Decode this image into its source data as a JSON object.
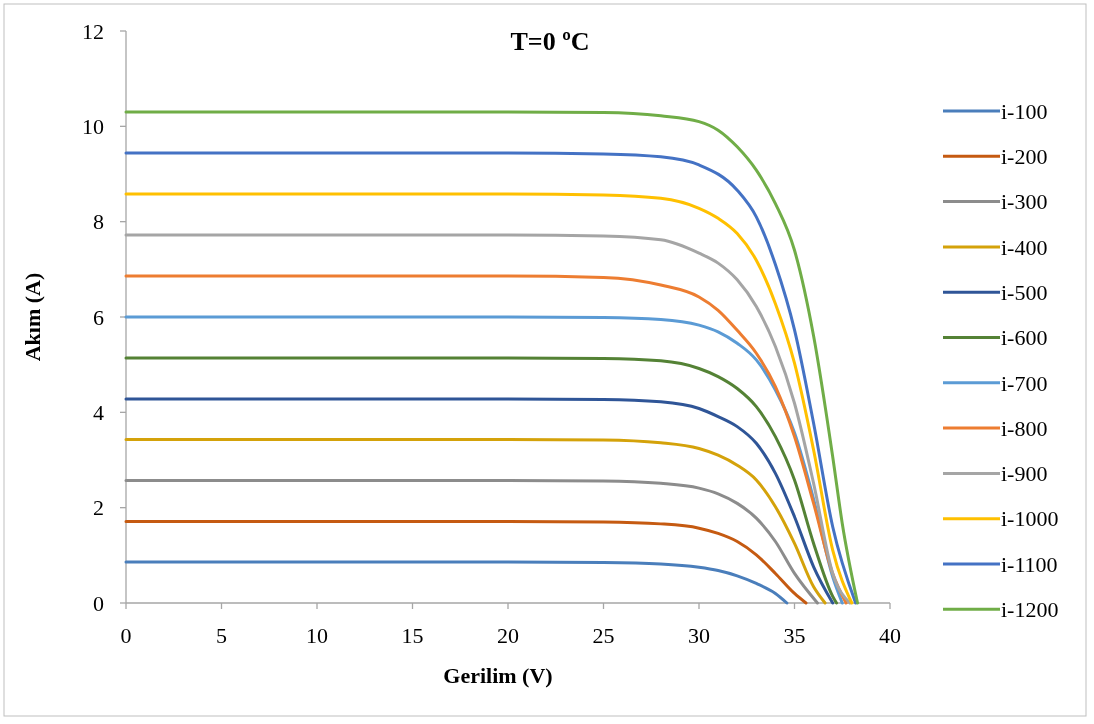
{
  "chart_data": {
    "type": "line",
    "title": "T=0 ºC",
    "xlabel": "Gerilim (V)",
    "ylabel": "Akım (A)",
    "xlim": [
      0,
      40
    ],
    "xticks": [
      0,
      5,
      10,
      15,
      20,
      25,
      30,
      35,
      40
    ],
    "ylim": [
      0,
      12
    ],
    "yticks": [
      0,
      2,
      4,
      6,
      8,
      10,
      12
    ],
    "grid": false,
    "legend": "right",
    "marker": "none",
    "line_style": "solid",
    "series": [
      {
        "name": "i-100",
        "color": "#4a7ebb",
        "x": [
          0,
          20,
          25,
          28,
          30,
          31,
          32,
          33,
          34,
          34.6
        ],
        "values": [
          0.86,
          0.86,
          0.85,
          0.82,
          0.75,
          0.68,
          0.57,
          0.41,
          0.2,
          0
        ]
      },
      {
        "name": "i-200",
        "color": "#c55a11",
        "x": [
          0,
          20,
          25,
          28,
          30,
          31,
          32,
          33,
          34,
          35,
          35.6
        ],
        "values": [
          1.71,
          1.71,
          1.7,
          1.66,
          1.57,
          1.46,
          1.29,
          1.01,
          0.62,
          0.2,
          0
        ]
      },
      {
        "name": "i-300",
        "color": "#8c8c8c",
        "x": [
          0,
          20,
          25,
          28,
          30,
          31,
          32,
          33,
          34,
          35,
          36.2
        ],
        "values": [
          2.57,
          2.57,
          2.56,
          2.51,
          2.41,
          2.29,
          2.09,
          1.78,
          1.29,
          0.62,
          0
        ]
      },
      {
        "name": "i-400",
        "color": "#d4a20a",
        "x": [
          0,
          20,
          25,
          28,
          30,
          31,
          32,
          33,
          34,
          35,
          36,
          36.6
        ],
        "values": [
          3.43,
          3.43,
          3.42,
          3.36,
          3.24,
          3.1,
          2.89,
          2.58,
          2.02,
          1.25,
          0.34,
          0
        ]
      },
      {
        "name": "i-500",
        "color": "#2f5597",
        "x": [
          0,
          20,
          25,
          28,
          30,
          31,
          32,
          33,
          34,
          35,
          36,
          37
        ],
        "values": [
          4.28,
          4.28,
          4.27,
          4.22,
          4.08,
          3.91,
          3.7,
          3.35,
          2.72,
          1.81,
          0.76,
          0
        ]
      },
      {
        "name": "i-600",
        "color": "#548235",
        "x": [
          0,
          20,
          25,
          28,
          30,
          31,
          32,
          33,
          34,
          35,
          36,
          37,
          37.2
        ],
        "values": [
          5.14,
          5.14,
          5.13,
          5.08,
          4.92,
          4.75,
          4.5,
          4.12,
          3.49,
          2.58,
          1.25,
          0.14,
          0
        ]
      },
      {
        "name": "i-700",
        "color": "#5b9bd5",
        "x": [
          0,
          20,
          25,
          28,
          30,
          31,
          32,
          33,
          34,
          35,
          36,
          37,
          37.5
        ],
        "values": [
          6.0,
          6.0,
          5.99,
          5.95,
          5.83,
          5.69,
          5.45,
          5.1,
          4.47,
          3.57,
          2.18,
          0.55,
          0
        ]
      },
      {
        "name": "i-800",
        "color": "#ed7d31",
        "x": [
          0,
          20,
          25,
          28,
          30,
          31,
          32,
          33,
          34,
          35,
          36,
          37,
          37.7
        ],
        "values": [
          6.86,
          6.86,
          6.83,
          6.67,
          6.42,
          6.14,
          5.72,
          5.24,
          4.54,
          3.49,
          2.09,
          0.62,
          0
        ]
      },
      {
        "name": "i-900",
        "color": "#a5a5a5",
        "x": [
          0,
          20,
          25,
          28,
          30,
          31,
          32,
          33,
          34,
          35,
          36,
          37,
          37.9
        ],
        "values": [
          7.72,
          7.72,
          7.7,
          7.62,
          7.34,
          7.13,
          6.78,
          6.22,
          5.38,
          4.19,
          2.51,
          0.62,
          0
        ]
      },
      {
        "name": "i-1000",
        "color": "#ffc000",
        "x": [
          0,
          20,
          25,
          28,
          30,
          31,
          32,
          33,
          34,
          35,
          36,
          37,
          38
        ],
        "values": [
          8.58,
          8.58,
          8.56,
          8.49,
          8.28,
          8.07,
          7.75,
          7.19,
          6.28,
          5.03,
          3.21,
          1.11,
          0
        ]
      },
      {
        "name": "i-1100",
        "color": "#4472c4",
        "x": [
          0,
          20,
          25,
          28,
          30,
          32,
          33,
          34,
          35,
          36,
          37,
          38.2
        ],
        "values": [
          9.44,
          9.44,
          9.42,
          9.36,
          9.19,
          8.66,
          8.1,
          7.1,
          5.73,
          3.77,
          1.6,
          0
        ]
      },
      {
        "name": "i-1200",
        "color": "#70ad47",
        "x": [
          0,
          20,
          25,
          28,
          30,
          31,
          32,
          33,
          34,
          35,
          36,
          37,
          37.5,
          38.3
        ],
        "values": [
          10.3,
          10.3,
          10.29,
          10.22,
          10.1,
          9.92,
          9.57,
          9.08,
          8.38,
          7.4,
          5.6,
          3.07,
          1.67,
          0
        ]
      }
    ]
  }
}
